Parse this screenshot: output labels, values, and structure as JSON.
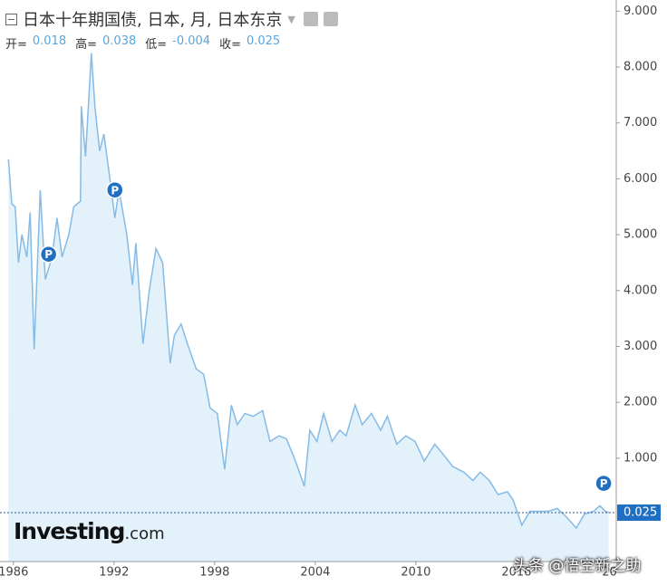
{
  "chart_data": {
    "type": "area",
    "title": "日本十年期国债, 日本, 月, 日本东京",
    "ohlc": [
      {
        "label": "开=",
        "value": 0.018
      },
      {
        "label": "高=",
        "value": 0.038
      },
      {
        "label": "低=",
        "value": -0.004
      },
      {
        "label": "收=",
        "value": 0.025
      }
    ],
    "x": [
      1985.7,
      1985.9,
      1986.1,
      1986.3,
      1986.5,
      1986.8,
      1987.0,
      1987.24,
      1987.6,
      1987.9,
      1988.3,
      1988.6,
      1988.9,
      1989.3,
      1989.6,
      1990.0,
      1990.05,
      1990.3,
      1990.65,
      1990.86,
      1991.14,
      1991.4,
      1991.8,
      1992.05,
      1992.3,
      1992.76,
      1993.1,
      1993.3,
      1993.73,
      1994.1,
      1994.5,
      1994.9,
      1995.35,
      1995.6,
      1996.0,
      1996.43,
      1996.9,
      1997.35,
      1997.73,
      1998.16,
      1998.6,
      1999.0,
      1999.35,
      1999.8,
      2000.3,
      2000.86,
      2001.3,
      2001.84,
      2002.27,
      2002.76,
      2003.35,
      2003.68,
      2004.1,
      2004.5,
      2005.0,
      2005.46,
      2005.84,
      2006.38,
      2006.8,
      2007.35,
      2007.9,
      2008.3,
      2008.86,
      2009.4,
      2009.95,
      2010.5,
      2011.13,
      2011.68,
      2012.2,
      2012.86,
      2013.4,
      2013.84,
      2014.38,
      2014.9,
      2015.46,
      2015.8,
      2016.32,
      2016.8,
      2017.35,
      2017.9,
      2018.43,
      2018.97,
      2019.57,
      2020.05,
      2020.6,
      2020.97,
      2021.3,
      2021.5
    ],
    "series": [
      {
        "name": "日本十年期国债",
        "color": "#85bbe6",
        "fill": "#e3f1fb",
        "values": [
          6.35,
          5.55,
          5.5,
          4.5,
          5.0,
          4.6,
          5.4,
          2.95,
          5.8,
          4.2,
          4.6,
          5.3,
          4.6,
          5.0,
          5.5,
          5.6,
          7.3,
          6.4,
          8.25,
          7.3,
          6.5,
          6.8,
          5.9,
          5.3,
          5.8,
          5.0,
          4.1,
          4.85,
          3.05,
          4.0,
          4.75,
          4.5,
          2.7,
          3.2,
          3.4,
          3.0,
          2.6,
          2.5,
          1.9,
          1.8,
          0.8,
          1.95,
          1.6,
          1.8,
          1.75,
          1.85,
          1.3,
          1.4,
          1.35,
          1.0,
          0.5,
          1.5,
          1.3,
          1.8,
          1.3,
          1.5,
          1.4,
          1.95,
          1.6,
          1.8,
          1.5,
          1.75,
          1.25,
          1.4,
          1.3,
          0.95,
          1.25,
          1.05,
          0.85,
          0.75,
          0.6,
          0.75,
          0.6,
          0.35,
          0.4,
          0.25,
          -0.2,
          0.05,
          0.05,
          0.05,
          0.1,
          -0.05,
          -0.25,
          0.0,
          0.05,
          0.15,
          0.05,
          0.025
        ]
      }
    ],
    "last_value": 0.025,
    "last_color": "#1f6fc2",
    "events": [
      {
        "label": "P",
        "x": 1988.1,
        "y": 4.65
      },
      {
        "label": "P",
        "x": 1992.05,
        "y": 5.8
      },
      {
        "label": "P",
        "x": 2021.2,
        "y": 0.55
      }
    ],
    "xlim": [
      1985.2,
      2021.95
    ],
    "ylim": [
      -0.85,
      9.2
    ],
    "xticks": [
      1986,
      1992,
      1998,
      2004,
      2010,
      2016,
      {
        "value": 2022,
        "label": "20"
      }
    ],
    "yticks": [
      {
        "value": 1,
        "label": "1.000"
      },
      {
        "value": 2,
        "label": "2.000"
      },
      {
        "value": 3,
        "label": "3.000"
      },
      {
        "value": 4,
        "label": "4.000"
      },
      {
        "value": 5,
        "label": "5.000"
      },
      {
        "value": 6,
        "label": "6.000"
      },
      {
        "value": 7,
        "label": "7.000"
      },
      {
        "value": 8,
        "label": "8.000"
      },
      {
        "value": 9,
        "label": "9.000"
      }
    ],
    "grid": false,
    "logo": [
      "Investing",
      ".com"
    ],
    "watermark": "头条 @悟空新之助"
  }
}
